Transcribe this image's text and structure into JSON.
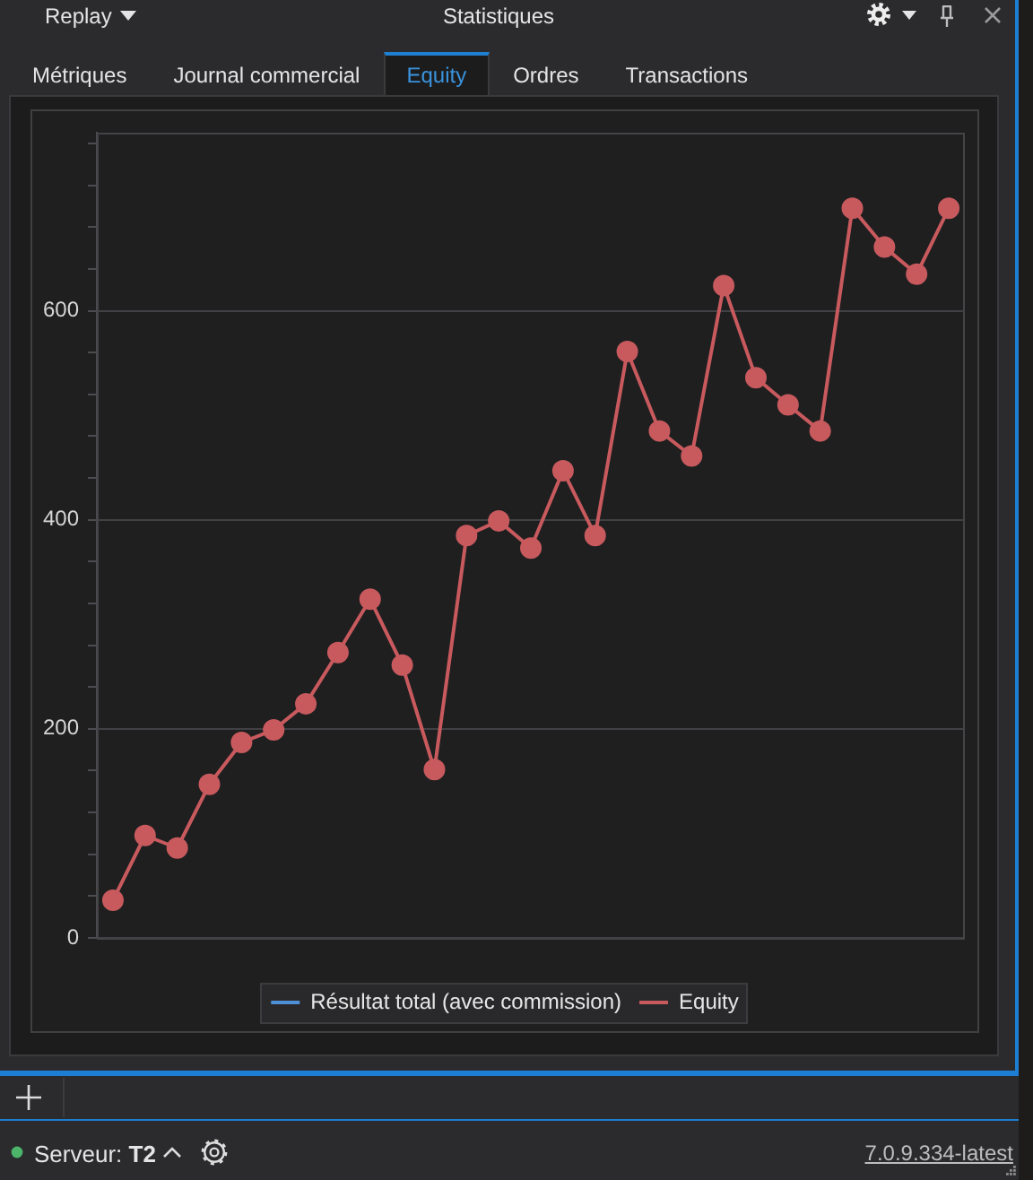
{
  "chart_data": {
    "type": "line",
    "title": "Statistiques",
    "annotations": [
      "Replay",
      "Métriques",
      "Journal commercial",
      "Equity",
      "Ordres",
      "Transactions",
      "Serveur: T2",
      "7.0.9.334-latest"
    ],
    "categories": [
      null,
      null,
      null,
      null,
      null,
      null,
      null,
      null,
      null,
      null,
      null,
      null,
      null,
      null,
      null,
      null,
      null,
      null,
      null,
      null,
      null,
      null,
      null,
      null,
      null,
      null,
      null
    ],
    "ylim": [
      0,
      770
    ],
    "yticks": [
      0,
      {
        "value": 40,
        "label": null
      },
      {
        "value": 80,
        "label": null
      },
      {
        "value": 120,
        "label": null
      },
      {
        "value": 160,
        "label": null
      },
      200,
      {
        "value": 240,
        "label": null
      },
      {
        "value": 280,
        "label": null
      },
      {
        "value": 320,
        "label": null
      },
      {
        "value": 360,
        "label": null
      },
      400,
      {
        "value": 440,
        "label": null
      },
      {
        "value": 480,
        "label": null
      },
      {
        "value": 520,
        "label": null
      },
      {
        "value": 560,
        "label": null
      },
      600,
      {
        "value": 640,
        "label": null
      },
      {
        "value": 680,
        "label": null
      },
      {
        "value": 720,
        "label": null
      },
      {
        "value": 760,
        "label": null
      }
    ],
    "series": [
      {
        "name": "Résultat total (avec commission)",
        "color": "#4f8fd6",
        "values": [
          null,
          null,
          null,
          null,
          null,
          null,
          null,
          null,
          null,
          null,
          null,
          null,
          null,
          null,
          null,
          null,
          null,
          null,
          null,
          null,
          null,
          null,
          null,
          null,
          null,
          null,
          null
        ]
      },
      {
        "name": "Equity",
        "color": "#c85a5e",
        "values": [
          36,
          98,
          86,
          147,
          187,
          199,
          224,
          273,
          324,
          261,
          161,
          385,
          399,
          373,
          447,
          385,
          561,
          485,
          461,
          624,
          536,
          510,
          485,
          698,
          661,
          635,
          698
        ]
      }
    ],
    "grid": "y",
    "legend": "bottom",
    "tick_labels": "y",
    "marker": "circle"
  }
}
